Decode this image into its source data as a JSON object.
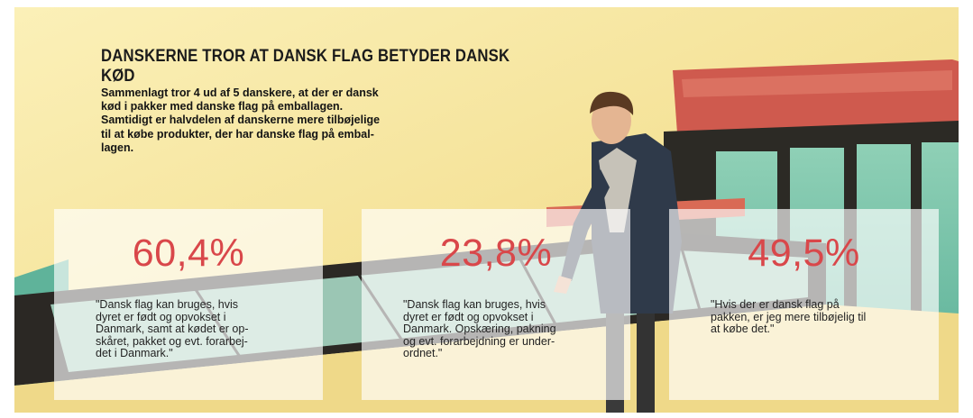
{
  "infographic": {
    "title": "DANSKERNE TROR AT DANSK FLAG BETYDER DANSK KØD",
    "intro": "Sammenlagt tror 4 ud af 5 danskere, at der er dansk\nkød i pakker med danske flag på emballagen.\nSamtidigt er halvdelen af danskerne mere tilbøjelige\ntil at købe produkter, der har danske flag på embal-\nlagen.",
    "stats": [
      {
        "value": "60,4%",
        "quote": "\"Dansk flag kan bruges, hvis\ndyret er født og opvokset i\nDanmark, samt at kødet er op-\nskåret, pakket og evt. forarbej-\ndet i Danmark.\""
      },
      {
        "value": "23,8%",
        "quote": "\"Dansk flag kan bruges, hvis\ndyret er født og opvokset i\nDanmark. Opskæring, pakning\nog evt. forarbejdning er under-\nordnet.\""
      },
      {
        "value": "49,5%",
        "quote": "\"Hvis der er dansk flag på\npakken, er jeg mere tilbøjelig til\nat købe det.\""
      }
    ]
  },
  "colors": {
    "accent_red": "#d9474a",
    "background_yellow": "#f6e7a6",
    "glass_teal": "#6fbfa6",
    "storefront_dark": "#2c2a25",
    "awning_red": "#cf5a4e"
  }
}
